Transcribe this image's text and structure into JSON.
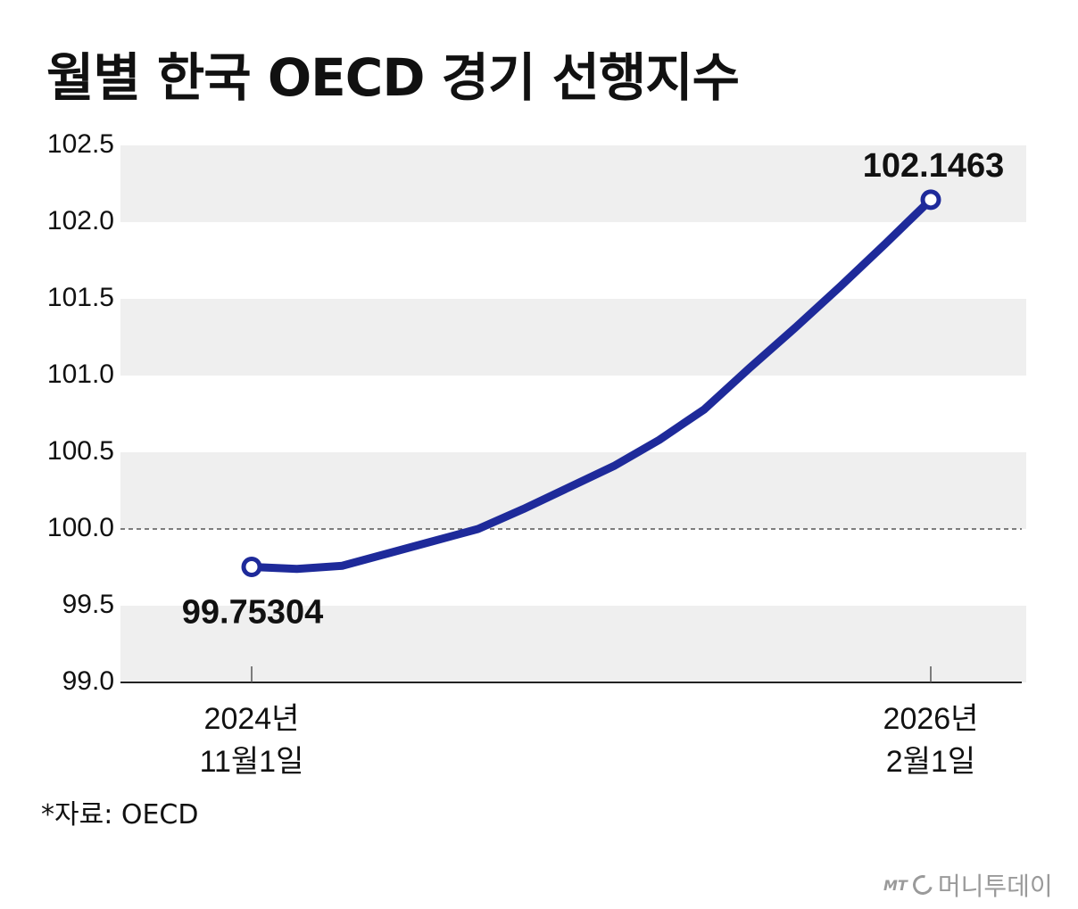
{
  "title": "월별 한국 OECD 경기 선행지수",
  "source": "*자료: OECD",
  "brand": {
    "prefix": "MT",
    "name": "머니투데이"
  },
  "colors": {
    "line": "#1e2a9a",
    "band": "#efefef",
    "reference": "#555555"
  },
  "chart_data": {
    "type": "line",
    "title": "월별 한국 OECD 경기 선행지수",
    "xlabel": "",
    "ylabel": "",
    "ylim": [
      99.0,
      102.5
    ],
    "yticks": [
      "99.0",
      "99.5",
      "100.0",
      "100.5",
      "101.0",
      "101.5",
      "102.0",
      "102.5"
    ],
    "reference_line": 100.0,
    "grid": "alternating horizontal bands",
    "x_labels": [
      {
        "line1": "2024년",
        "line2": "11월1일"
      },
      {
        "line1": "2026년",
        "line2": "2월1일"
      }
    ],
    "x": [
      "2024-11-01",
      "2024-12-01",
      "2025-01-01",
      "2025-02-01",
      "2025-03-01",
      "2025-04-01",
      "2025-05-01",
      "2025-06-01",
      "2025-07-01",
      "2025-08-01",
      "2025-09-01",
      "2025-10-01",
      "2025-11-01",
      "2025-12-01",
      "2026-01-01",
      "2026-02-01"
    ],
    "series": [
      {
        "values": [
          99.75304,
          99.74,
          99.76,
          99.84,
          99.92,
          100.0,
          100.13,
          100.27,
          100.41,
          100.58,
          100.78,
          101.05,
          101.31,
          101.58,
          101.86,
          102.1463
        ]
      }
    ],
    "annotations": [
      {
        "index": 0,
        "text": "99.75304",
        "position": "below"
      },
      {
        "index": 15,
        "text": "102.1463",
        "position": "above"
      }
    ]
  }
}
